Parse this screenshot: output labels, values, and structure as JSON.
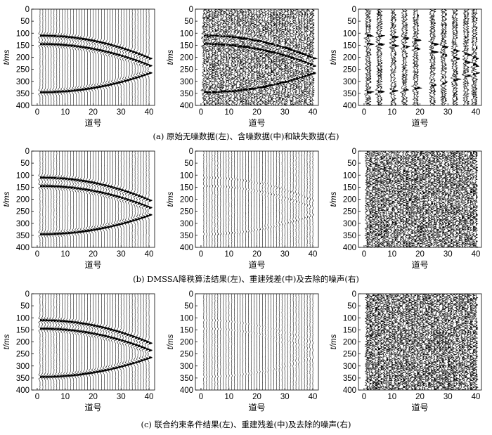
{
  "figure": {
    "rows": [
      {
        "caption": "(a) 原始无噪数据(左)、含噪数据(中)和缺失数据(右)",
        "panels": [
          {
            "ylabel": "t/ms",
            "xlabel": "道号",
            "content": "clean"
          },
          {
            "ylabel": "t/ms",
            "xlabel": "道号",
            "content": "noisy"
          },
          {
            "ylabel": "t/ms",
            "xlabel": "道号",
            "content": "missing"
          }
        ]
      },
      {
        "caption": "(b) DMSSA降秩算法结果(左)、重建残差(中)及去除的噪声(右)",
        "panels": [
          {
            "ylabel": "t/ms",
            "xlabel": "道号",
            "content": "reconstructed"
          },
          {
            "ylabel": "t/ms",
            "xlabel": "道号",
            "content": "residual"
          },
          {
            "ylabel": "t/ms",
            "xlabel": "道号",
            "content": "noise"
          }
        ]
      },
      {
        "caption": "(c) 联合约束条件结果(左)、重建残差(中)及去除的噪声(右)",
        "panels": [
          {
            "ylabel": "t/ms",
            "xlabel": "道号",
            "content": "reconstructed"
          },
          {
            "ylabel": "t/ms",
            "xlabel": "道号",
            "content": "residual_light"
          },
          {
            "ylabel": "t/ms",
            "xlabel": "道号",
            "content": "noise"
          }
        ]
      }
    ],
    "axes": {
      "x_ticks": [
        0,
        10,
        20,
        30,
        40
      ],
      "y_ticks": [
        0,
        50,
        100,
        150,
        200,
        250,
        300,
        350,
        400
      ],
      "xlim": [
        -2,
        42
      ],
      "ylim": [
        0,
        400
      ],
      "traces": 40
    },
    "events": [
      {
        "type": "hyperbola",
        "apex_time_ms": 110,
        "apex_trace": 1,
        "end_time_ms": 205
      },
      {
        "type": "hyperbola",
        "apex_time_ms": 145,
        "apex_trace": 1,
        "end_time_ms": 235
      },
      {
        "type": "hyperbola",
        "apex_time_ms": 345,
        "apex_trace": 1,
        "end_time_ms": 265
      }
    ],
    "missing_traces_present": [
      1,
      2,
      5,
      6,
      10,
      11,
      14,
      15,
      18,
      19,
      24,
      25,
      28,
      29,
      32,
      33,
      36,
      37,
      39,
      40
    ]
  }
}
